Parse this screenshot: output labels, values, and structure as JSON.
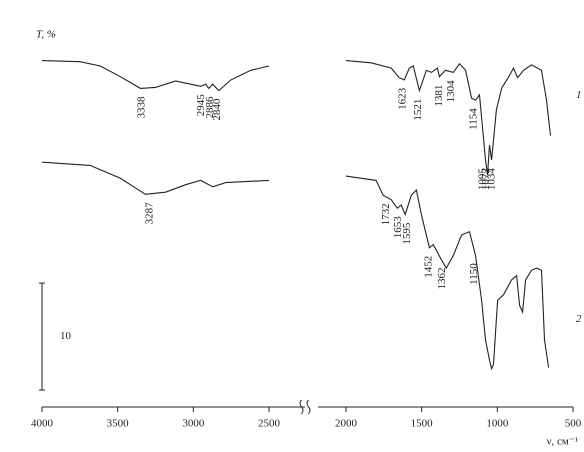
{
  "chart_data": {
    "type": "line",
    "y_label": "T, %",
    "x_label": "ν, см⁻¹",
    "xlim": [
      4000,
      500
    ],
    "x_break": [
      2500,
      2000
    ],
    "xticks": [
      4000,
      3500,
      3000,
      2500,
      2000,
      1500,
      1000,
      500
    ],
    "ylim": [
      0,
      36
    ],
    "scale_bar": {
      "start": 1.4,
      "length": 10
    },
    "series": [
      {
        "name": "1",
        "color": "#222",
        "x": [
          4000,
          3748,
          3615,
          3482,
          3350,
          3250,
          3117,
          3018,
          2951,
          2918,
          2898,
          2872,
          2832,
          2752,
          2620,
          2500,
          null,
          2000,
          1834,
          1701,
          1648,
          1615,
          1582,
          1555,
          1515,
          1469,
          1436,
          1396,
          1383,
          1343,
          1290,
          1250,
          1210,
          1171,
          1144,
          1118,
          1078,
          1065,
          1052,
          1038,
          1006,
          972,
          920,
          893,
          866,
          827,
          774,
          708,
          675,
          649
        ],
        "values": [
          32.2,
          32.1,
          31.7,
          30.7,
          29.6,
          29.7,
          30.3,
          30.0,
          29.8,
          30.0,
          29.6,
          30.0,
          29.4,
          30.4,
          31.3,
          31.7,
          null,
          32.2,
          32.0,
          31.5,
          30.6,
          30.4,
          31.5,
          31.7,
          29.4,
          31.3,
          31.1,
          31.5,
          30.7,
          31.3,
          31.1,
          31.9,
          31.3,
          28.7,
          28.5,
          29.0,
          22.9,
          21.5,
          24.3,
          22.9,
          27.6,
          29.6,
          30.8,
          31.5,
          30.6,
          31.3,
          31.8,
          31.3,
          28.5,
          25.2
        ],
        "peaks": [
          3338,
          2945,
          2886,
          2840,
          1623,
          1521,
          1381,
          1304,
          1154,
          1095,
          1072,
          1034
        ]
      },
      {
        "name": "2",
        "color": "#222",
        "x": [
          4000,
          3682,
          3482,
          3317,
          3184,
          3051,
          2951,
          2872,
          2786,
          2500,
          null,
          2000,
          1801,
          1754,
          1701,
          1661,
          1635,
          1609,
          1569,
          1535,
          1502,
          1449,
          1423,
          1370,
          1337,
          1290,
          1237,
          1184,
          1144,
          1104,
          1078,
          1052,
          1038,
          1025,
          998,
          959,
          906,
          873,
          853,
          833,
          813,
          774,
          740,
          708,
          688,
          661
        ],
        "values": [
          22.7,
          22.4,
          21.2,
          19.7,
          19.9,
          20.6,
          21.0,
          20.4,
          20.8,
          21.0,
          null,
          21.4,
          21.0,
          19.6,
          19.2,
          18.4,
          18.7,
          17.8,
          19.6,
          20.1,
          17.8,
          14.7,
          15.0,
          13.6,
          12.8,
          14.0,
          15.9,
          16.2,
          14.0,
          9.8,
          6.1,
          4.2,
          3.4,
          3.8,
          9.8,
          10.3,
          11.7,
          12.1,
          9.3,
          8.7,
          11.7,
          12.6,
          12.8,
          12.6,
          6.1,
          3.5
        ],
        "peaks": [
          3287,
          1732,
          1653,
          1595,
          1452,
          1362,
          1150
        ]
      }
    ]
  }
}
